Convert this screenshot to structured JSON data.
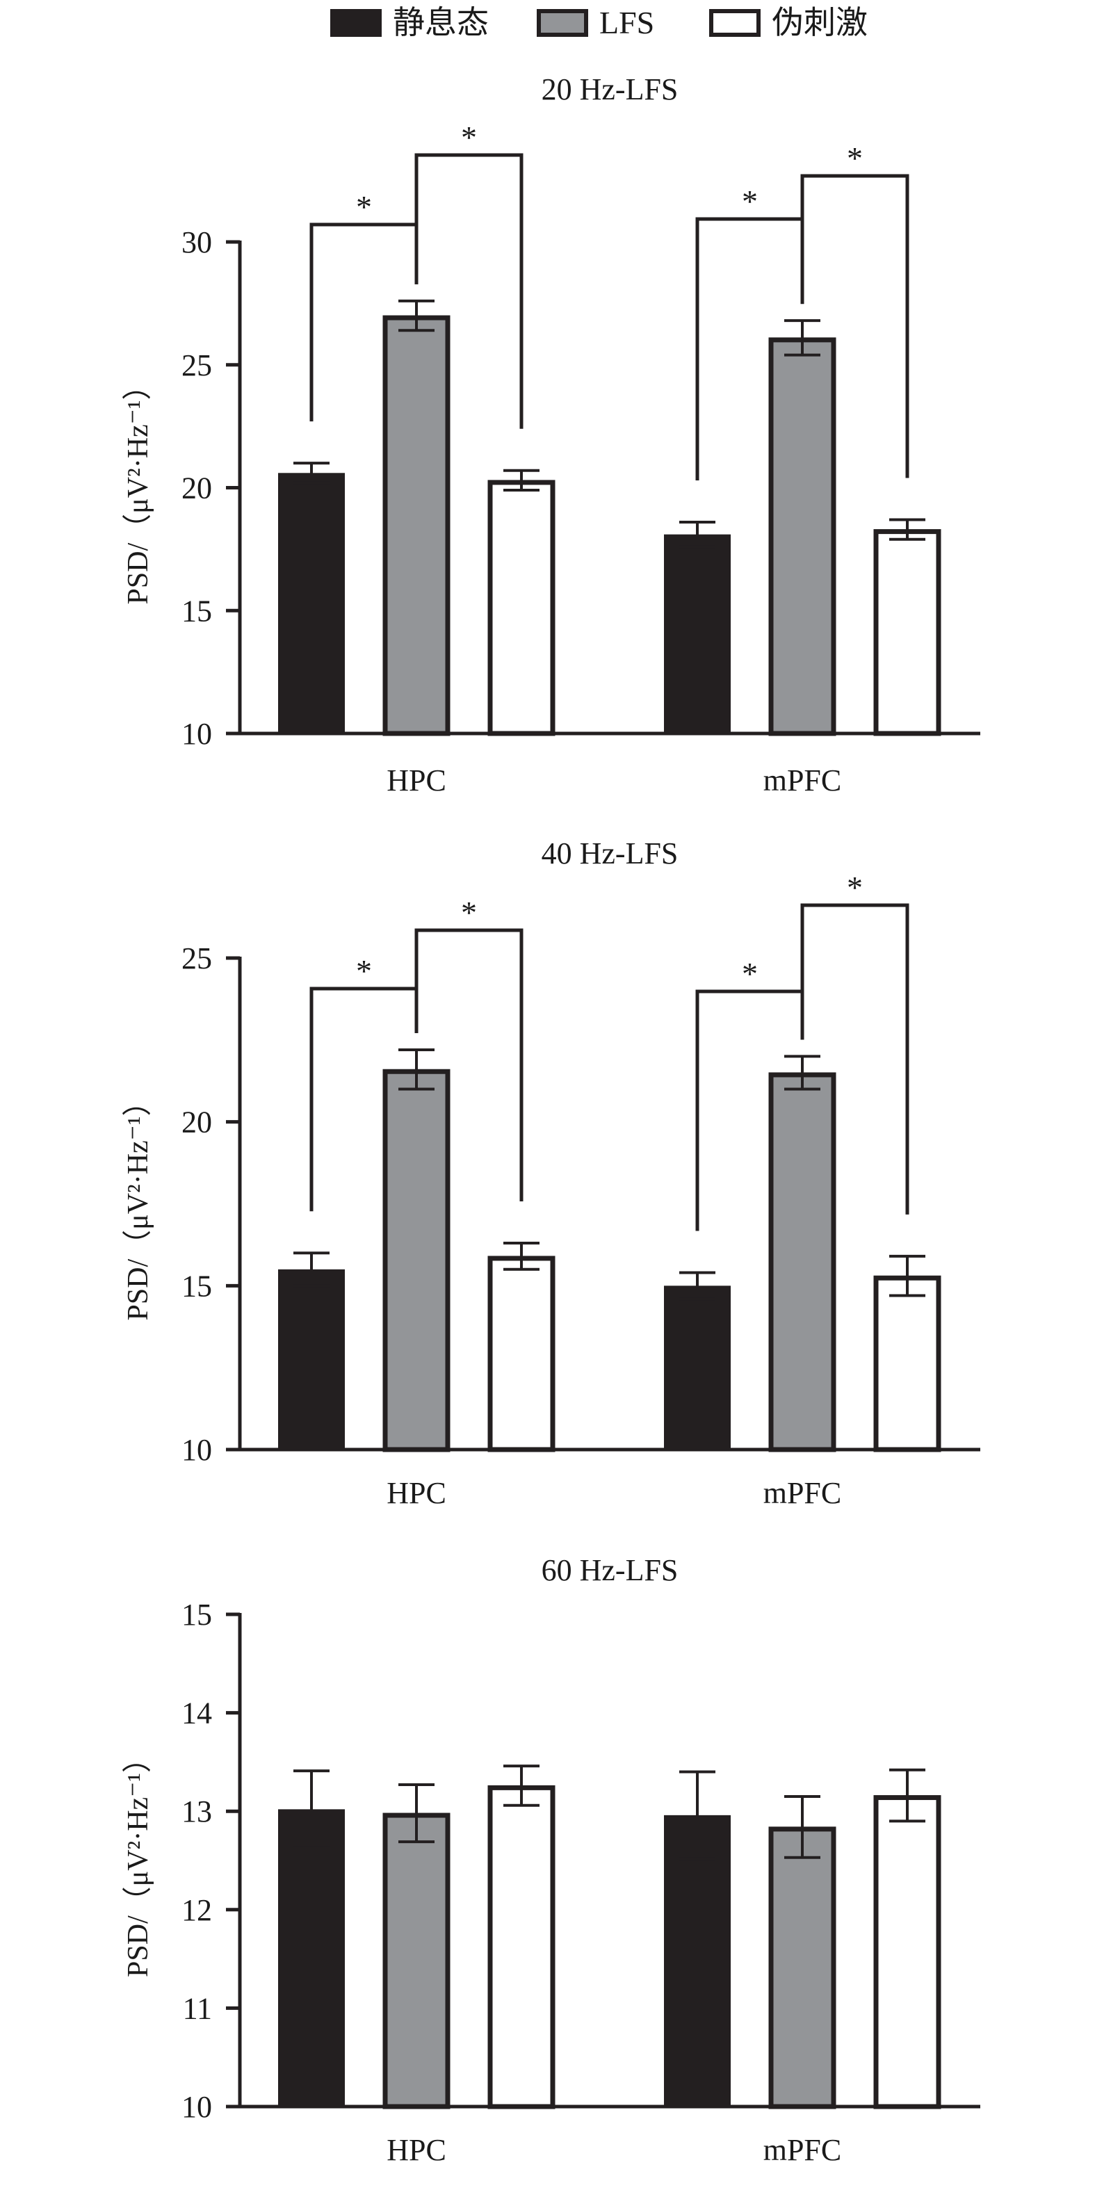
{
  "legend": [
    {
      "label": "静息态",
      "color": "#231f20",
      "style": "filled"
    },
    {
      "label": "LFS",
      "color": "#939598",
      "style": "gray"
    },
    {
      "label": "伪刺激",
      "color": "#ffffff",
      "style": "open"
    }
  ],
  "chart_data": [
    {
      "type": "bar",
      "title": "20 Hz-LFS",
      "ylabel": "PSD/（μV²·Hz⁻¹）",
      "ylim": [
        10,
        30
      ],
      "yticks": [
        10,
        15,
        20,
        25,
        30
      ],
      "categories": [
        "HPC",
        "mPFC"
      ],
      "series": [
        {
          "name": "静息态",
          "values": [
            20.6,
            18.1
          ],
          "errors": [
            0.4,
            0.5
          ]
        },
        {
          "name": "LFS",
          "values": [
            27.0,
            26.1
          ],
          "errors": [
            0.6,
            0.7
          ]
        },
        {
          "name": "伪刺激",
          "values": [
            20.3,
            18.3
          ],
          "errors": [
            0.4,
            0.4
          ]
        }
      ],
      "significance": [
        {
          "category": 0,
          "from": 0,
          "to": 1,
          "label": "*"
        },
        {
          "category": 0,
          "from": 1,
          "to": 2,
          "label": "*"
        },
        {
          "category": 1,
          "from": 0,
          "to": 1,
          "label": "*"
        },
        {
          "category": 1,
          "from": 1,
          "to": 2,
          "label": "*"
        }
      ]
    },
    {
      "type": "bar",
      "title": "40 Hz-LFS",
      "ylabel": "PSD/（μV²·Hz⁻¹）",
      "ylim": [
        10,
        25
      ],
      "yticks": [
        10,
        15,
        20,
        25
      ],
      "categories": [
        "HPC",
        "mPFC"
      ],
      "series": [
        {
          "name": "静息态",
          "values": [
            15.5,
            15.0
          ],
          "errors": [
            0.5,
            0.4
          ]
        },
        {
          "name": "LFS",
          "values": [
            21.6,
            21.5
          ],
          "errors": [
            0.6,
            0.5
          ]
        },
        {
          "name": "伪刺激",
          "values": [
            15.9,
            15.3
          ],
          "errors": [
            0.4,
            0.6
          ]
        }
      ],
      "significance": [
        {
          "category": 0,
          "from": 0,
          "to": 1,
          "label": "*"
        },
        {
          "category": 0,
          "from": 1,
          "to": 2,
          "label": "*"
        },
        {
          "category": 1,
          "from": 0,
          "to": 1,
          "label": "*"
        },
        {
          "category": 1,
          "from": 1,
          "to": 2,
          "label": "*"
        }
      ]
    },
    {
      "type": "bar",
      "title": "60 Hz-LFS",
      "ylabel": "PSD/（μV²·Hz⁻¹）",
      "ylim": [
        10,
        15
      ],
      "yticks": [
        10,
        11,
        12,
        13,
        14,
        15
      ],
      "categories": [
        "HPC",
        "mPFC"
      ],
      "series": [
        {
          "name": "静息态",
          "values": [
            13.02,
            12.96
          ],
          "errors": [
            0.39,
            0.44
          ]
        },
        {
          "name": "LFS",
          "values": [
            12.98,
            12.84
          ],
          "errors": [
            0.29,
            0.31
          ]
        },
        {
          "name": "伪刺激",
          "values": [
            13.26,
            13.16
          ],
          "errors": [
            0.2,
            0.26
          ]
        }
      ],
      "significance": []
    }
  ]
}
